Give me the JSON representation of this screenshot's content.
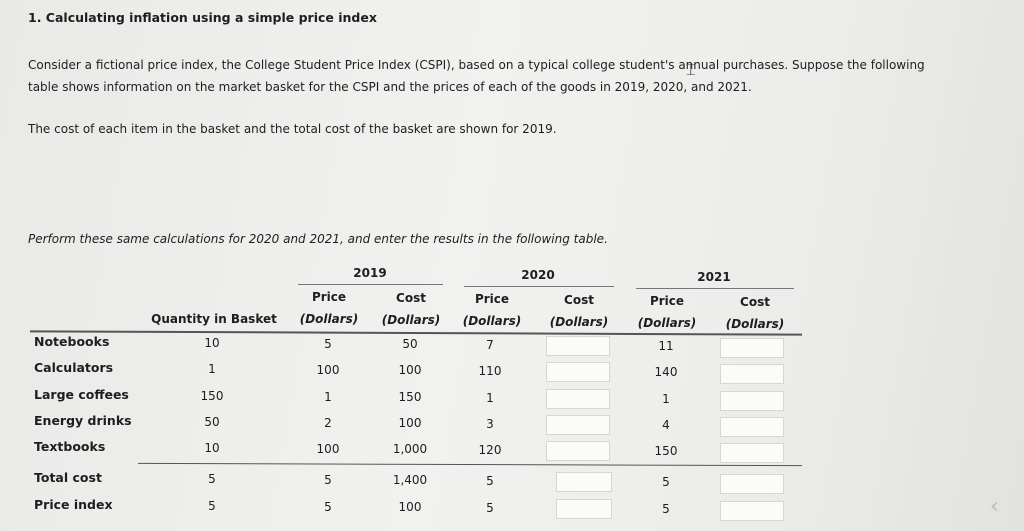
{
  "title": "1. Calculating inflation using a simple price index",
  "intro_line1": "Consider a fictional price index, the College Student Price Index (CSPI), based on a typical college student's annual purchases. Suppose the following",
  "intro_line2": "table shows information on the market basket for the CSPI and the prices of each of the goods in 2019, 2020, and 2021.",
  "cost_note": "The cost of each item in the basket and the total cost of the basket are shown for 2019.",
  "instruction": "Perform these same calculations for 2020 and 2021, and enter the results in the following table.",
  "table": {
    "years": [
      "2019",
      "2020",
      "2021"
    ],
    "header_quantity": "Quantity in Basket",
    "header_price": "Price",
    "header_cost": "Cost",
    "header_unit": "(Dollars)",
    "rows": [
      {
        "label": "Notebooks",
        "quantity": "10",
        "price_2019": "5",
        "cost_2019": "50",
        "price_2020": "7",
        "price_2021": "11"
      },
      {
        "label": "Calculators",
        "quantity": "1",
        "price_2019": "100",
        "cost_2019": "100",
        "price_2020": "110",
        "price_2021": "140"
      },
      {
        "label": "Large coffees",
        "quantity": "150",
        "price_2019": "1",
        "cost_2019": "150",
        "price_2020": "1",
        "price_2021": "1"
      },
      {
        "label": "Energy drinks",
        "quantity": "50",
        "price_2019": "2",
        "cost_2019": "100",
        "price_2020": "3",
        "price_2021": "4"
      },
      {
        "label": "Textbooks",
        "quantity": "10",
        "price_2019": "100",
        "cost_2019": "1,000",
        "price_2020": "120",
        "price_2021": "150"
      }
    ],
    "total_row": {
      "label": "Total cost",
      "quantity": "5",
      "price_2019": "5",
      "cost_2019": "1,400",
      "price_2020": "5",
      "price_2021": "5"
    },
    "index_row": {
      "label": "Price index",
      "quantity": "5",
      "price_2019": "5",
      "cost_2019": "100",
      "price_2020": "5",
      "price_2021": "5"
    }
  },
  "icons": {
    "text_cursor": "text-cursor-icon",
    "collapse": "chevron-left-icon"
  }
}
